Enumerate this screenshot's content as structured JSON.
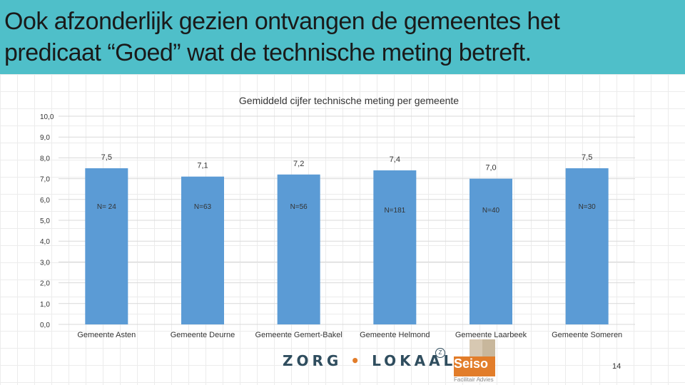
{
  "slide": {
    "title_line1": "Ook afzonderlijk gezien ontvangen de gemeentes het",
    "title_line2": "predicaat “Goed” wat de technische meting betreft.",
    "page_number": "14",
    "header_color": "#4fbfc9"
  },
  "logos": {
    "zorg_part1": "ZORG",
    "zorg_dot": "•",
    "zorg_part2": "LOKAAL",
    "zorg_reg": "Z",
    "seiso_name": "Seiso",
    "seiso_sub": "Facilitair Advies"
  },
  "chart_data": {
    "type": "bar",
    "title": "Gemiddeld cijfer technische meting per gemeente",
    "categories": [
      "Gemeente Asten",
      "Gemeente Deurne",
      "Gemeente Gemert-Bakel",
      "Gemeente Helmond",
      "Gemeente Laarbeek",
      "Gemeente Someren"
    ],
    "values": [
      7.5,
      7.1,
      7.2,
      7.4,
      7.0,
      7.5
    ],
    "value_labels": [
      "7,5",
      "7,1",
      "7,2",
      "7,4",
      "7,0",
      "7,5"
    ],
    "n_labels": [
      "N= 24",
      "N=63",
      "N=56",
      "N=181",
      "N=40",
      "N=30"
    ],
    "ylim": [
      0,
      10
    ],
    "yticks": [
      "0,0",
      "1,0",
      "2,0",
      "3,0",
      "4,0",
      "5,0",
      "6,0",
      "7,0",
      "8,0",
      "9,0",
      "10,0"
    ],
    "bar_color": "#5b9bd5",
    "grid": true
  }
}
